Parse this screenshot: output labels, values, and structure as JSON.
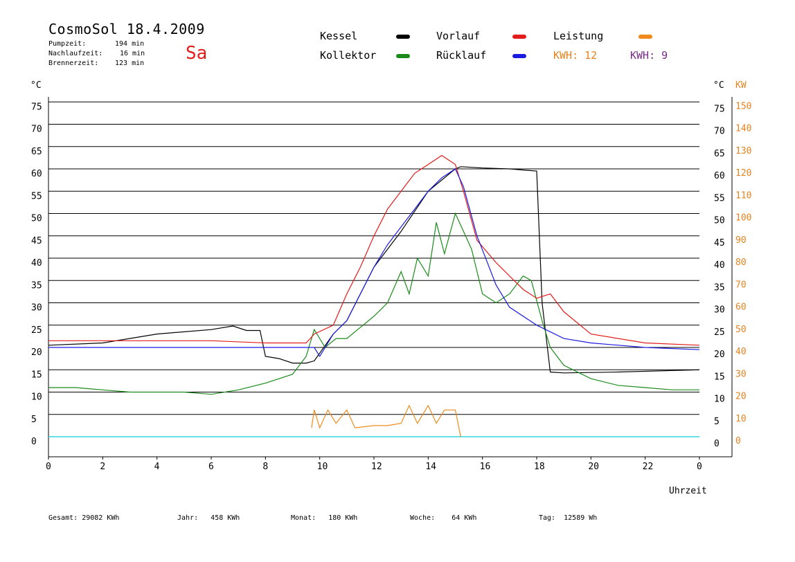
{
  "header": {
    "title": "CosmoSol 18.4.2009",
    "day": "Sa",
    "info": [
      {
        "label": "Pumpzeit:",
        "value": "194 min"
      },
      {
        "label": "Nachlaufzeit:",
        "value": "16 min"
      },
      {
        "label": "Brennerzeit:",
        "value": "123 min"
      }
    ]
  },
  "legend": {
    "items": [
      {
        "label": "Kessel",
        "color": "#000000"
      },
      {
        "label": "Vorlauf",
        "color": "#e21b1b"
      },
      {
        "label": "Leistung",
        "color": "#f08a1c"
      },
      {
        "label": "Kollektor",
        "color": "#1a8a1a"
      },
      {
        "label": "Rücklauf",
        "color": "#1a1ae0"
      }
    ],
    "kwh_orange": "KWH: 12",
    "kwh_purple": "KWH: 9"
  },
  "axes": {
    "y_left_unit": "°C",
    "y_right_unit": "°C",
    "y_right2_unit": "KW",
    "x_label": "Uhrzeit"
  },
  "footer": [
    {
      "label": "Gesamt:",
      "value": "29082 KWh"
    },
    {
      "label": "Jahr:",
      "value": "458 KWh"
    },
    {
      "label": "Monat:",
      "value": "180 KWh"
    },
    {
      "label": "Woche:",
      "value": "64 KWh"
    },
    {
      "label": "Tag:",
      "value": "12589 Wh"
    }
  ],
  "chart_data": {
    "type": "line",
    "x_ticks": [
      "0",
      "2",
      "4",
      "6",
      "8",
      "10",
      "12",
      "14",
      "16",
      "18",
      "20",
      "22",
      "0"
    ],
    "y_ticks": [
      0,
      5,
      10,
      15,
      20,
      25,
      30,
      35,
      40,
      45,
      50,
      55,
      60,
      65,
      70,
      75
    ],
    "y_right_kw_ticks": [
      0,
      10,
      20,
      30,
      40,
      50,
      60,
      70,
      80,
      90,
      100,
      110,
      120,
      130,
      140,
      150
    ],
    "xlim": [
      0,
      24
    ],
    "ylim": [
      0,
      75
    ],
    "grid": true,
    "series": [
      {
        "name": "Kessel",
        "color": "#000000",
        "x": [
          0,
          2,
          4,
          6,
          6.8,
          7.3,
          7.8,
          8.0,
          8.5,
          9.0,
          9.5,
          9.8,
          10.5,
          11.0,
          12.0,
          13.0,
          14.0,
          15.0,
          15.2,
          16.0,
          17.0,
          18.0,
          18.2,
          18.5,
          19.0,
          21.0,
          24.0
        ],
        "y": [
          20.5,
          21,
          23,
          24,
          24.8,
          23.8,
          23.8,
          18,
          17.5,
          16.5,
          16.5,
          17,
          23,
          26,
          38,
          46,
          55,
          60,
          60.5,
          60.2,
          60,
          59.5,
          30,
          14.5,
          14.3,
          14.5,
          15
        ]
      },
      {
        "name": "Kollektor",
        "color": "#1a8a1a",
        "x": [
          0,
          1,
          2,
          3,
          4,
          5,
          6,
          7,
          8,
          9,
          9.5,
          9.8,
          10.2,
          10.6,
          11.0,
          11.4,
          12.0,
          12.5,
          13.0,
          13.3,
          13.6,
          14.0,
          14.3,
          14.6,
          15.0,
          15.3,
          15.6,
          16.0,
          16.5,
          17.0,
          17.5,
          17.8,
          18.2,
          18.5,
          19.0,
          20.0,
          21.0,
          22.0,
          23.0,
          24.0
        ],
        "y": [
          11,
          11,
          10.5,
          10,
          10,
          10,
          9.5,
          10.5,
          12,
          14,
          18,
          24,
          20,
          22,
          22,
          24,
          27,
          30,
          37,
          32,
          40,
          36,
          48,
          41,
          50,
          46,
          42,
          32,
          30,
          32,
          36,
          35,
          26,
          20,
          16,
          13,
          11.5,
          11,
          10.5,
          10.5
        ]
      },
      {
        "name": "Vorlauf",
        "color": "#e21b1b",
        "x": [
          0,
          2,
          4,
          6,
          8,
          9.5,
          9.8,
          10.5,
          11.0,
          11.5,
          12.0,
          12.5,
          13.0,
          13.5,
          14.0,
          14.5,
          15.0,
          15.3,
          15.8,
          16.5,
          17.0,
          17.5,
          18.0,
          18.5,
          19.0,
          20.0,
          22.0,
          24.0
        ],
        "y": [
          21.5,
          21.5,
          21.5,
          21.5,
          21,
          21,
          23,
          25,
          32,
          38,
          45,
          51,
          55,
          59,
          61,
          63,
          61,
          55,
          44,
          39,
          36,
          33,
          31,
          32,
          28,
          23,
          21,
          20.5
        ]
      },
      {
        "name": "Rücklauf",
        "color": "#1a1ae0",
        "x": [
          0,
          2,
          4,
          6,
          8,
          9.8,
          10.0,
          10.5,
          11.0,
          11.5,
          12.0,
          12.5,
          13.0,
          13.5,
          14.0,
          14.5,
          15.0,
          15.3,
          15.8,
          16.5,
          17.0,
          18.0,
          19.0,
          20.0,
          22.0,
          24.0
        ],
        "y": [
          20,
          20,
          20,
          20,
          20,
          20,
          18,
          23,
          26,
          32,
          38,
          43,
          47,
          51,
          55,
          58,
          60,
          56,
          45,
          34,
          29,
          25,
          22,
          21,
          20,
          19.5
        ]
      },
      {
        "name": "Leistung",
        "color": "#f08a1c",
        "x": [
          9.7,
          9.8,
          10.0,
          10.3,
          10.6,
          11.0,
          11.3,
          12.0,
          12.5,
          13.0,
          13.3,
          13.6,
          14.0,
          14.3,
          14.6,
          15.0,
          15.2
        ],
        "y": [
          2,
          6,
          2,
          6,
          3,
          6,
          2,
          2.5,
          2.5,
          3,
          7,
          3,
          7,
          3,
          6,
          6,
          0
        ]
      }
    ]
  }
}
